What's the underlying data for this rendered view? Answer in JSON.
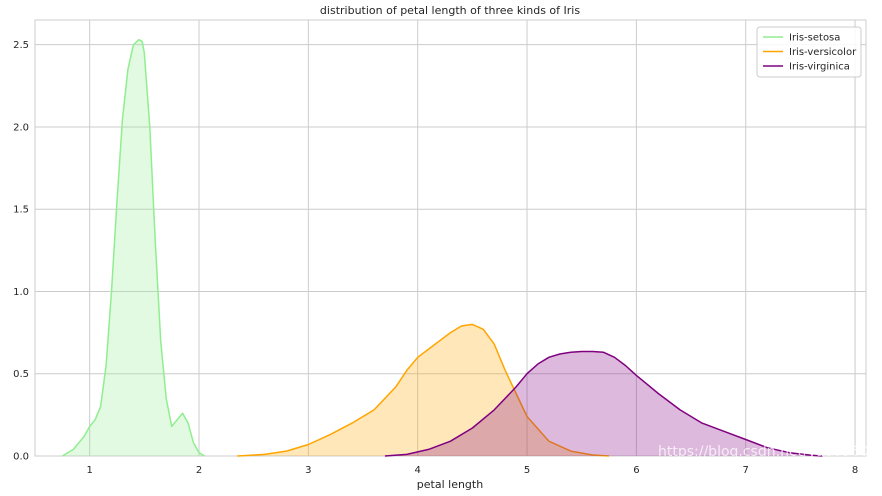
{
  "chart_data": {
    "type": "area",
    "title": "distribution of petal length of three kinds of Iris",
    "xlabel": "petal length",
    "ylabel": "",
    "xlim": [
      0.5,
      8.1
    ],
    "ylim": [
      0,
      2.65
    ],
    "xticks": [
      1,
      2,
      3,
      4,
      5,
      6,
      7,
      8
    ],
    "yticks": [
      0.0,
      0.5,
      1.0,
      1.5,
      2.0,
      2.5
    ],
    "ytick_labels": [
      "0.0",
      "0.5",
      "1.0",
      "1.5",
      "2.0",
      "2.5"
    ],
    "grid": true,
    "legend_position": "top-right",
    "series": [
      {
        "name": "Iris-setosa",
        "color": "#90EE90",
        "x": [
          0.75,
          0.85,
          0.95,
          1.0,
          1.05,
          1.1,
          1.15,
          1.2,
          1.25,
          1.3,
          1.35,
          1.4,
          1.45,
          1.48,
          1.5,
          1.55,
          1.6,
          1.65,
          1.7,
          1.75,
          1.8,
          1.85,
          1.9,
          1.95,
          2.0,
          2.05
        ],
        "y": [
          0.0,
          0.04,
          0.12,
          0.18,
          0.22,
          0.3,
          0.55,
          1.0,
          1.55,
          2.05,
          2.35,
          2.5,
          2.53,
          2.52,
          2.45,
          2.0,
          1.3,
          0.7,
          0.35,
          0.18,
          0.22,
          0.26,
          0.2,
          0.08,
          0.02,
          0.0
        ]
      },
      {
        "name": "Iris-versicolor",
        "color": "#FFA500",
        "x": [
          2.35,
          2.6,
          2.8,
          3.0,
          3.2,
          3.4,
          3.6,
          3.8,
          3.9,
          4.0,
          4.1,
          4.2,
          4.3,
          4.4,
          4.5,
          4.6,
          4.7,
          4.8,
          4.9,
          5.0,
          5.2,
          5.4,
          5.6,
          5.75
        ],
        "y": [
          0.0,
          0.01,
          0.03,
          0.07,
          0.13,
          0.2,
          0.28,
          0.42,
          0.52,
          0.6,
          0.65,
          0.7,
          0.75,
          0.79,
          0.8,
          0.77,
          0.68,
          0.52,
          0.38,
          0.24,
          0.09,
          0.03,
          0.006,
          0.0
        ]
      },
      {
        "name": "Iris-virginica",
        "color": "#800080",
        "x": [
          3.7,
          3.9,
          4.1,
          4.3,
          4.5,
          4.7,
          4.9,
          5.0,
          5.1,
          5.2,
          5.3,
          5.4,
          5.5,
          5.6,
          5.7,
          5.8,
          5.9,
          6.0,
          6.2,
          6.4,
          6.6,
          6.8,
          7.0,
          7.2,
          7.4,
          7.6,
          7.7
        ],
        "y": [
          0.0,
          0.01,
          0.04,
          0.09,
          0.17,
          0.28,
          0.42,
          0.5,
          0.56,
          0.6,
          0.62,
          0.63,
          0.635,
          0.635,
          0.63,
          0.6,
          0.55,
          0.49,
          0.38,
          0.28,
          0.2,
          0.15,
          0.1,
          0.05,
          0.02,
          0.005,
          0.0
        ]
      }
    ]
  },
  "watermark": "https://blog.csdn.net/yao09605"
}
